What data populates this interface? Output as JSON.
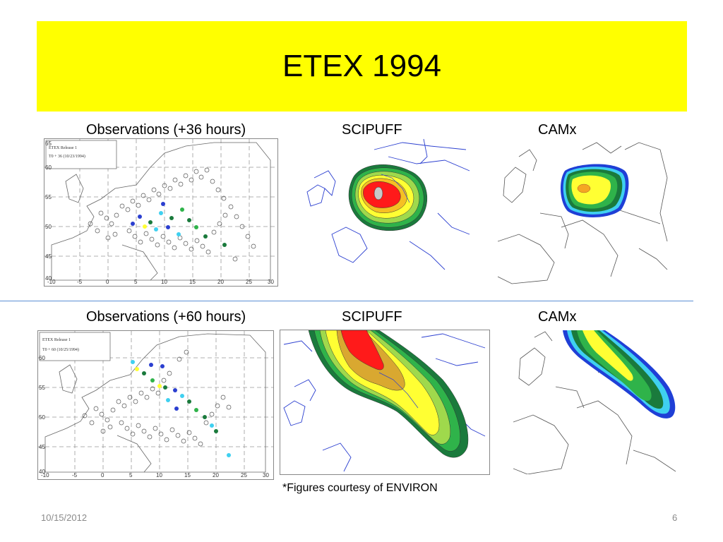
{
  "slide": {
    "title": "ETEX 1994",
    "credit": "*Figures courtesy of ENVIRON",
    "date": "10/15/2012",
    "page_number": "6"
  },
  "rows": [
    {
      "observation_label": "Observations (+36 hours)",
      "observation_legend": [
        "ETEX Release 1",
        "T0 + 36 (10/23/1994)"
      ],
      "scipuff_label": "SCIPUFF",
      "camx_label": "CAMx"
    },
    {
      "observation_label": "Observations (+60 hours)",
      "observation_legend": [
        "ETEX Release 1",
        "T0 + 60 (10/25/1994)"
      ],
      "scipuff_label": "SCIPUFF",
      "camx_label": "CAMx"
    }
  ],
  "map_axes": {
    "x_ticks": [
      "-10",
      "-5",
      "0",
      "5",
      "10",
      "15",
      "20",
      "25",
      "30"
    ],
    "y_ticks_row1": [
      "65",
      "60",
      "55",
      "50",
      "45",
      "40"
    ],
    "y_ticks_row2": [
      "60",
      "55",
      "50",
      "45",
      "40"
    ]
  },
  "colors": {
    "title_band": "#ffff00",
    "divider": "#5b8fd4",
    "plume_red": "#ff1a1a",
    "plume_orange": "#f5a623",
    "plume_yellow": "#ffff33",
    "plume_green": "#2fb34a",
    "plume_darkgreen": "#1a7a3c",
    "plume_cyan": "#3fd0f0",
    "plume_blue": "#1f3fd6",
    "coast_blue": "#2b3fd0",
    "coast_gray": "#555555"
  }
}
